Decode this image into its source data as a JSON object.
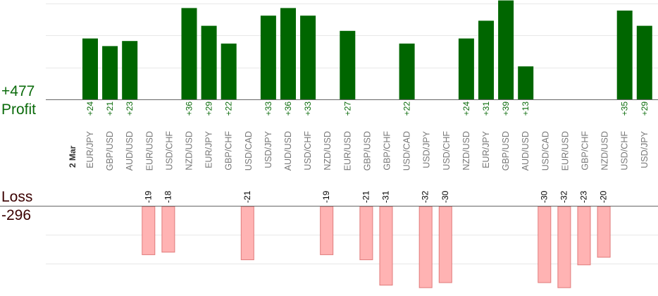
{
  "summary": {
    "profit_total": "+477",
    "profit_label": "Profit",
    "loss_label": "Loss",
    "loss_total": "-296"
  },
  "chart_data": {
    "type": "bar",
    "date_label": "2 Mar",
    "colors": {
      "profit": "#006600",
      "loss_fill": "#ffb3b3",
      "loss_stroke": "#e07a7a",
      "profit_text": "#0b6b0b",
      "loss_text": "#000000",
      "axis": "#666666",
      "grid": "#e8e8e8"
    },
    "categories": [
      "EUR/JPY",
      "GBP/USD",
      "AUD/USD",
      "EUR/USD",
      "USD/CHF",
      "NZD/USD",
      "EUR/JPY",
      "GBP/CHF",
      "USD/CAD",
      "USD/JPY",
      "AUD/USD",
      "USD/CHF",
      "NZD/USD",
      "EUR/USD",
      "GBP/USD",
      "GBP/CHF",
      "USD/CAD",
      "USD/JPY",
      "USD/CHF",
      "NZD/USD",
      "EUR/JPY",
      "GBP/USD",
      "AUD/USD",
      "USD/CAD",
      "EUR/USD",
      "GBP/CHF",
      "NZD/USD",
      "USD/CHF",
      "USD/JPY"
    ],
    "values": [
      24,
      21,
      23,
      -19,
      -18,
      36,
      29,
      22,
      -21,
      33,
      36,
      33,
      -19,
      27,
      -21,
      -31,
      22,
      -32,
      -30,
      24,
      31,
      39,
      13,
      -30,
      -32,
      -23,
      -20,
      35,
      29
    ],
    "value_labels": [
      "+24",
      "+21",
      "+23",
      "-19",
      "-18",
      "+36",
      "+29",
      "+22",
      "-21",
      "+33",
      "+36",
      "+33",
      "-19",
      "+27",
      "-21",
      "-31",
      "+22",
      "-32",
      "-30",
      "+24",
      "+31",
      "+39",
      "+13",
      "-30",
      "-32",
      "-23",
      "-20",
      "+35",
      "+29"
    ]
  }
}
